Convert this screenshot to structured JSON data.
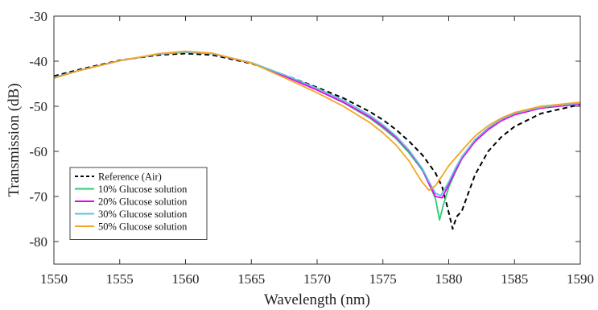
{
  "chart_data": {
    "type": "line",
    "title": "",
    "xlabel": "Wavelength (nm)",
    "ylabel": "Transmission (dB)",
    "xlim": [
      1550,
      1590
    ],
    "ylim": [
      -85,
      -30
    ],
    "xticks": [
      "1550",
      "1555",
      "1560",
      "1565",
      "1570",
      "1575",
      "1580",
      "1585",
      "1590"
    ],
    "yticks": [
      "-30",
      "-40",
      "-50",
      "-60",
      "-70",
      "-80"
    ],
    "grid": false,
    "legend_position": "bottom-left",
    "series": [
      {
        "name": "Reference (Air)",
        "color": "#000000",
        "dash": "dashed",
        "x": [
          1550,
          1552,
          1555,
          1558,
          1560,
          1562,
          1565,
          1568,
          1570,
          1572,
          1574,
          1575,
          1576,
          1577,
          1578,
          1579,
          1579.5,
          1580,
          1580.3,
          1580.6,
          1581,
          1581.5,
          1582,
          1583,
          1584,
          1585,
          1587,
          1590
        ],
        "y": [
          -43.3,
          -41.8,
          -39.8,
          -38.6,
          -38.3,
          -38.6,
          -40.5,
          -43.6,
          -45.8,
          -48.2,
          -51.2,
          -53.0,
          -55.2,
          -57.8,
          -60.8,
          -64.8,
          -67.8,
          -73.5,
          -77.2,
          -74.5,
          -73.2,
          -69.2,
          -65.2,
          -60.0,
          -56.8,
          -54.5,
          -51.6,
          -49.6
        ]
      },
      {
        "name": "10% Glucose solution",
        "color": "#2ecc71",
        "dash": "solid",
        "x": [
          1550,
          1552,
          1555,
          1558,
          1560,
          1562,
          1565,
          1568,
          1570,
          1572,
          1574,
          1575,
          1576,
          1577,
          1578,
          1578.5,
          1579,
          1579.3,
          1579.6,
          1580,
          1580.5,
          1581,
          1582,
          1583,
          1584,
          1585,
          1587,
          1590
        ],
        "y": [
          -43.6,
          -42.0,
          -39.9,
          -38.4,
          -38.0,
          -38.3,
          -40.4,
          -43.9,
          -46.4,
          -49.2,
          -52.6,
          -54.8,
          -57.2,
          -60.4,
          -64.2,
          -67.2,
          -70.5,
          -75.2,
          -71.8,
          -68.0,
          -64.6,
          -61.6,
          -57.6,
          -55.0,
          -53.0,
          -51.8,
          -50.4,
          -49.5
        ]
      },
      {
        "name": "20% Glucose solution",
        "color": "#ee00ee",
        "dash": "solid",
        "x": [
          1550,
          1552,
          1555,
          1558,
          1560,
          1562,
          1565,
          1568,
          1570,
          1572,
          1574,
          1575,
          1576,
          1577,
          1578,
          1578.5,
          1579,
          1579.5,
          1580,
          1580.5,
          1581,
          1582,
          1583,
          1584,
          1585,
          1587,
          1590
        ],
        "y": [
          -43.6,
          -42.0,
          -39.9,
          -38.4,
          -38.0,
          -38.3,
          -40.4,
          -43.9,
          -46.4,
          -49.1,
          -52.4,
          -54.5,
          -56.9,
          -60.0,
          -64.0,
          -67.2,
          -70.0,
          -70.3,
          -67.4,
          -64.4,
          -61.6,
          -57.8,
          -55.2,
          -53.2,
          -51.9,
          -50.4,
          -49.5
        ]
      },
      {
        "name": "30% Glucose solution",
        "color": "#5bc0de",
        "dash": "solid",
        "x": [
          1550,
          1552,
          1555,
          1558,
          1560,
          1562,
          1565,
          1568,
          1570,
          1572,
          1574,
          1575,
          1576,
          1577,
          1578,
          1578.5,
          1579,
          1579.4,
          1580,
          1580.5,
          1581,
          1582,
          1583,
          1584,
          1585,
          1587,
          1590
        ],
        "y": [
          -43.6,
          -42.0,
          -39.9,
          -38.4,
          -38.0,
          -38.3,
          -40.3,
          -43.6,
          -46.0,
          -48.7,
          -52.0,
          -54.1,
          -56.6,
          -59.8,
          -63.8,
          -66.7,
          -69.3,
          -69.8,
          -66.8,
          -63.8,
          -61.2,
          -57.4,
          -54.8,
          -52.9,
          -51.6,
          -50.2,
          -49.3
        ]
      },
      {
        "name": "50% Glucose solution",
        "color": "#f5a623",
        "dash": "solid",
        "x": [
          1550,
          1552,
          1555,
          1558,
          1560,
          1562,
          1565,
          1568,
          1570,
          1572,
          1574,
          1575,
          1576,
          1577,
          1577.5,
          1578,
          1578.5,
          1579,
          1579.5,
          1580,
          1581,
          1582,
          1583,
          1584,
          1585,
          1587,
          1590
        ],
        "y": [
          -43.8,
          -42.0,
          -39.9,
          -38.3,
          -37.8,
          -38.2,
          -40.4,
          -44.3,
          -47.0,
          -50.0,
          -53.6,
          -55.9,
          -58.6,
          -62.2,
          -64.6,
          -66.9,
          -68.6,
          -67.6,
          -65.4,
          -63.2,
          -59.8,
          -56.6,
          -54.3,
          -52.6,
          -51.4,
          -50.0,
          -49.1
        ]
      }
    ]
  }
}
